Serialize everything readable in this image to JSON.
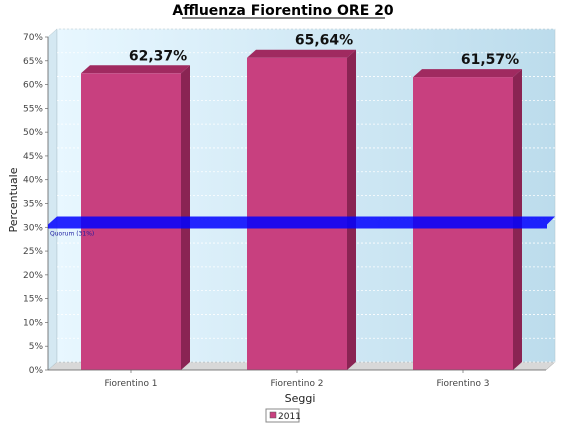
{
  "chart_data": {
    "type": "bar",
    "title": "Affluenza Fiorentino ORE 20",
    "xlabel": "Seggi",
    "ylabel": "Percentuale",
    "categories": [
      "Fiorentino 1",
      "Fiorentino 2",
      "Fiorentino 3"
    ],
    "series": [
      {
        "name": "2011",
        "values": [
          62.37,
          65.64,
          61.57
        ],
        "color": "#c8407f"
      }
    ],
    "data_labels": [
      "62,37%",
      "65,64%",
      "61,57%"
    ],
    "ylim": [
      0,
      70
    ],
    "yticks": [
      "0%",
      "5%",
      "10%",
      "15%",
      "20%",
      "25%",
      "30%",
      "35%",
      "40%",
      "45%",
      "50%",
      "55%",
      "60%",
      "65%",
      "70%"
    ],
    "reference_line": {
      "label": "Quorum (31%)",
      "value": 31,
      "color": "#0000ff"
    },
    "grid": true,
    "legend_position": "bottom-center",
    "colors": {
      "plot_bg_left": "#e6f6ff",
      "plot_bg_right": "#bcdcec",
      "bar": "#c8407f",
      "bar_top": "#a02a60",
      "bar_side": "#8a2453"
    }
  }
}
